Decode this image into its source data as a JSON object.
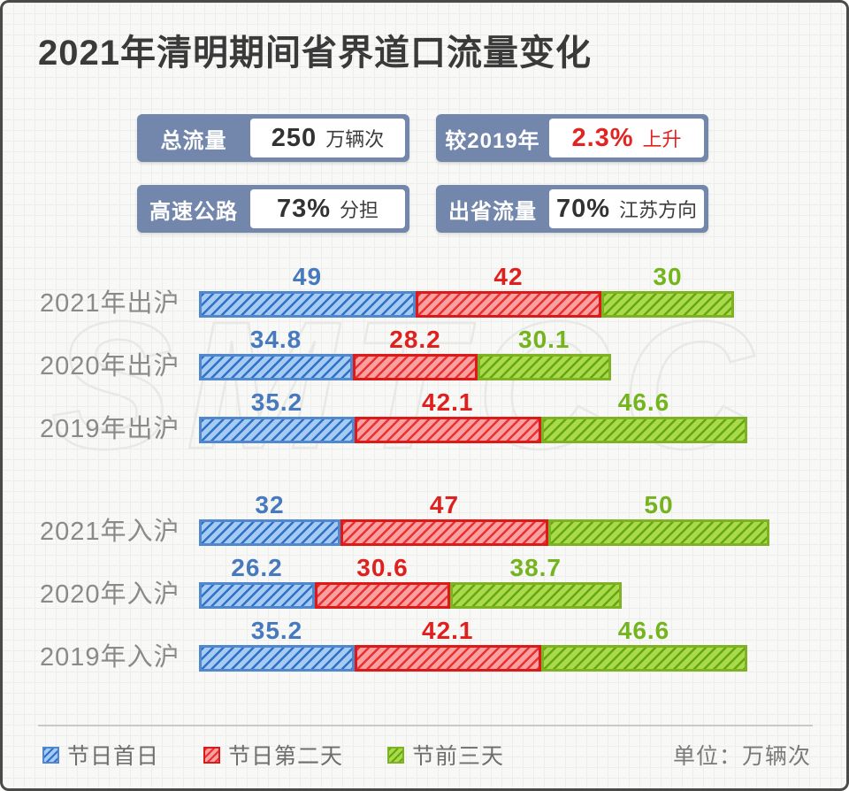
{
  "title": "2021年清明期间省界道口流量变化",
  "watermark": "SMTCC",
  "stats": [
    {
      "label": "总流量",
      "value": "250",
      "suffix": "万辆次",
      "value_color": "#323232",
      "suffix_color": "#3d3d3d"
    },
    {
      "label": "较2019年",
      "value": "2.3%",
      "suffix": "上升",
      "value_color": "#e42320",
      "suffix_color": "#e42320"
    },
    {
      "label": "高速公路",
      "value": "73%",
      "suffix": "分担",
      "value_color": "#323232",
      "suffix_color": "#3d3d3d"
    },
    {
      "label": "出省流量",
      "value": "70%",
      "suffix": "江苏方向",
      "value_color": "#323232",
      "suffix_color": "#3d3d3d"
    }
  ],
  "chart_data": {
    "type": "bar",
    "orientation": "horizontal",
    "stacked": true,
    "title": "2021年清明期间省界道口流量变化",
    "unit": "万辆次",
    "series": [
      "节日首日",
      "节日第二天",
      "节前三天"
    ],
    "series_colors": [
      "#4679bd",
      "#e01f1f",
      "#74b41d"
    ],
    "group_break_after_row": 3,
    "rows": [
      {
        "label": "2021年出沪",
        "values": [
          49,
          42,
          30
        ]
      },
      {
        "label": "2020年出沪",
        "values": [
          34.8,
          28.2,
          30.1
        ]
      },
      {
        "label": "2019年出沪",
        "values": [
          35.2,
          42.1,
          46.6
        ]
      },
      {
        "label": "2021年入沪",
        "values": [
          32,
          47,
          50
        ]
      },
      {
        "label": "2020年入沪",
        "values": [
          26.2,
          30.6,
          38.7
        ]
      },
      {
        "label": "2019年入沪",
        "values": [
          35.2,
          42.1,
          46.6
        ]
      }
    ]
  },
  "legend": [
    {
      "label": "节日首日"
    },
    {
      "label": "节日第二天"
    },
    {
      "label": "节前三天"
    }
  ],
  "unit_label": "单位：万辆次",
  "colors": {
    "accent_red": "#e42320",
    "stat_box_bg": "#7287ab",
    "bar_blue_fill": "#a5cbf3",
    "bar_blue_stripe": "#2f70c8",
    "bar_blue_border": "#5187cd",
    "bar_red_fill": "#f9a1a1",
    "bar_red_stripe": "#ea3030",
    "bar_red_border": "#dd1a1a",
    "bar_green_fill": "#abd94e",
    "bar_green_stripe": "#63a90e",
    "bar_green_border": "#7eb224"
  }
}
